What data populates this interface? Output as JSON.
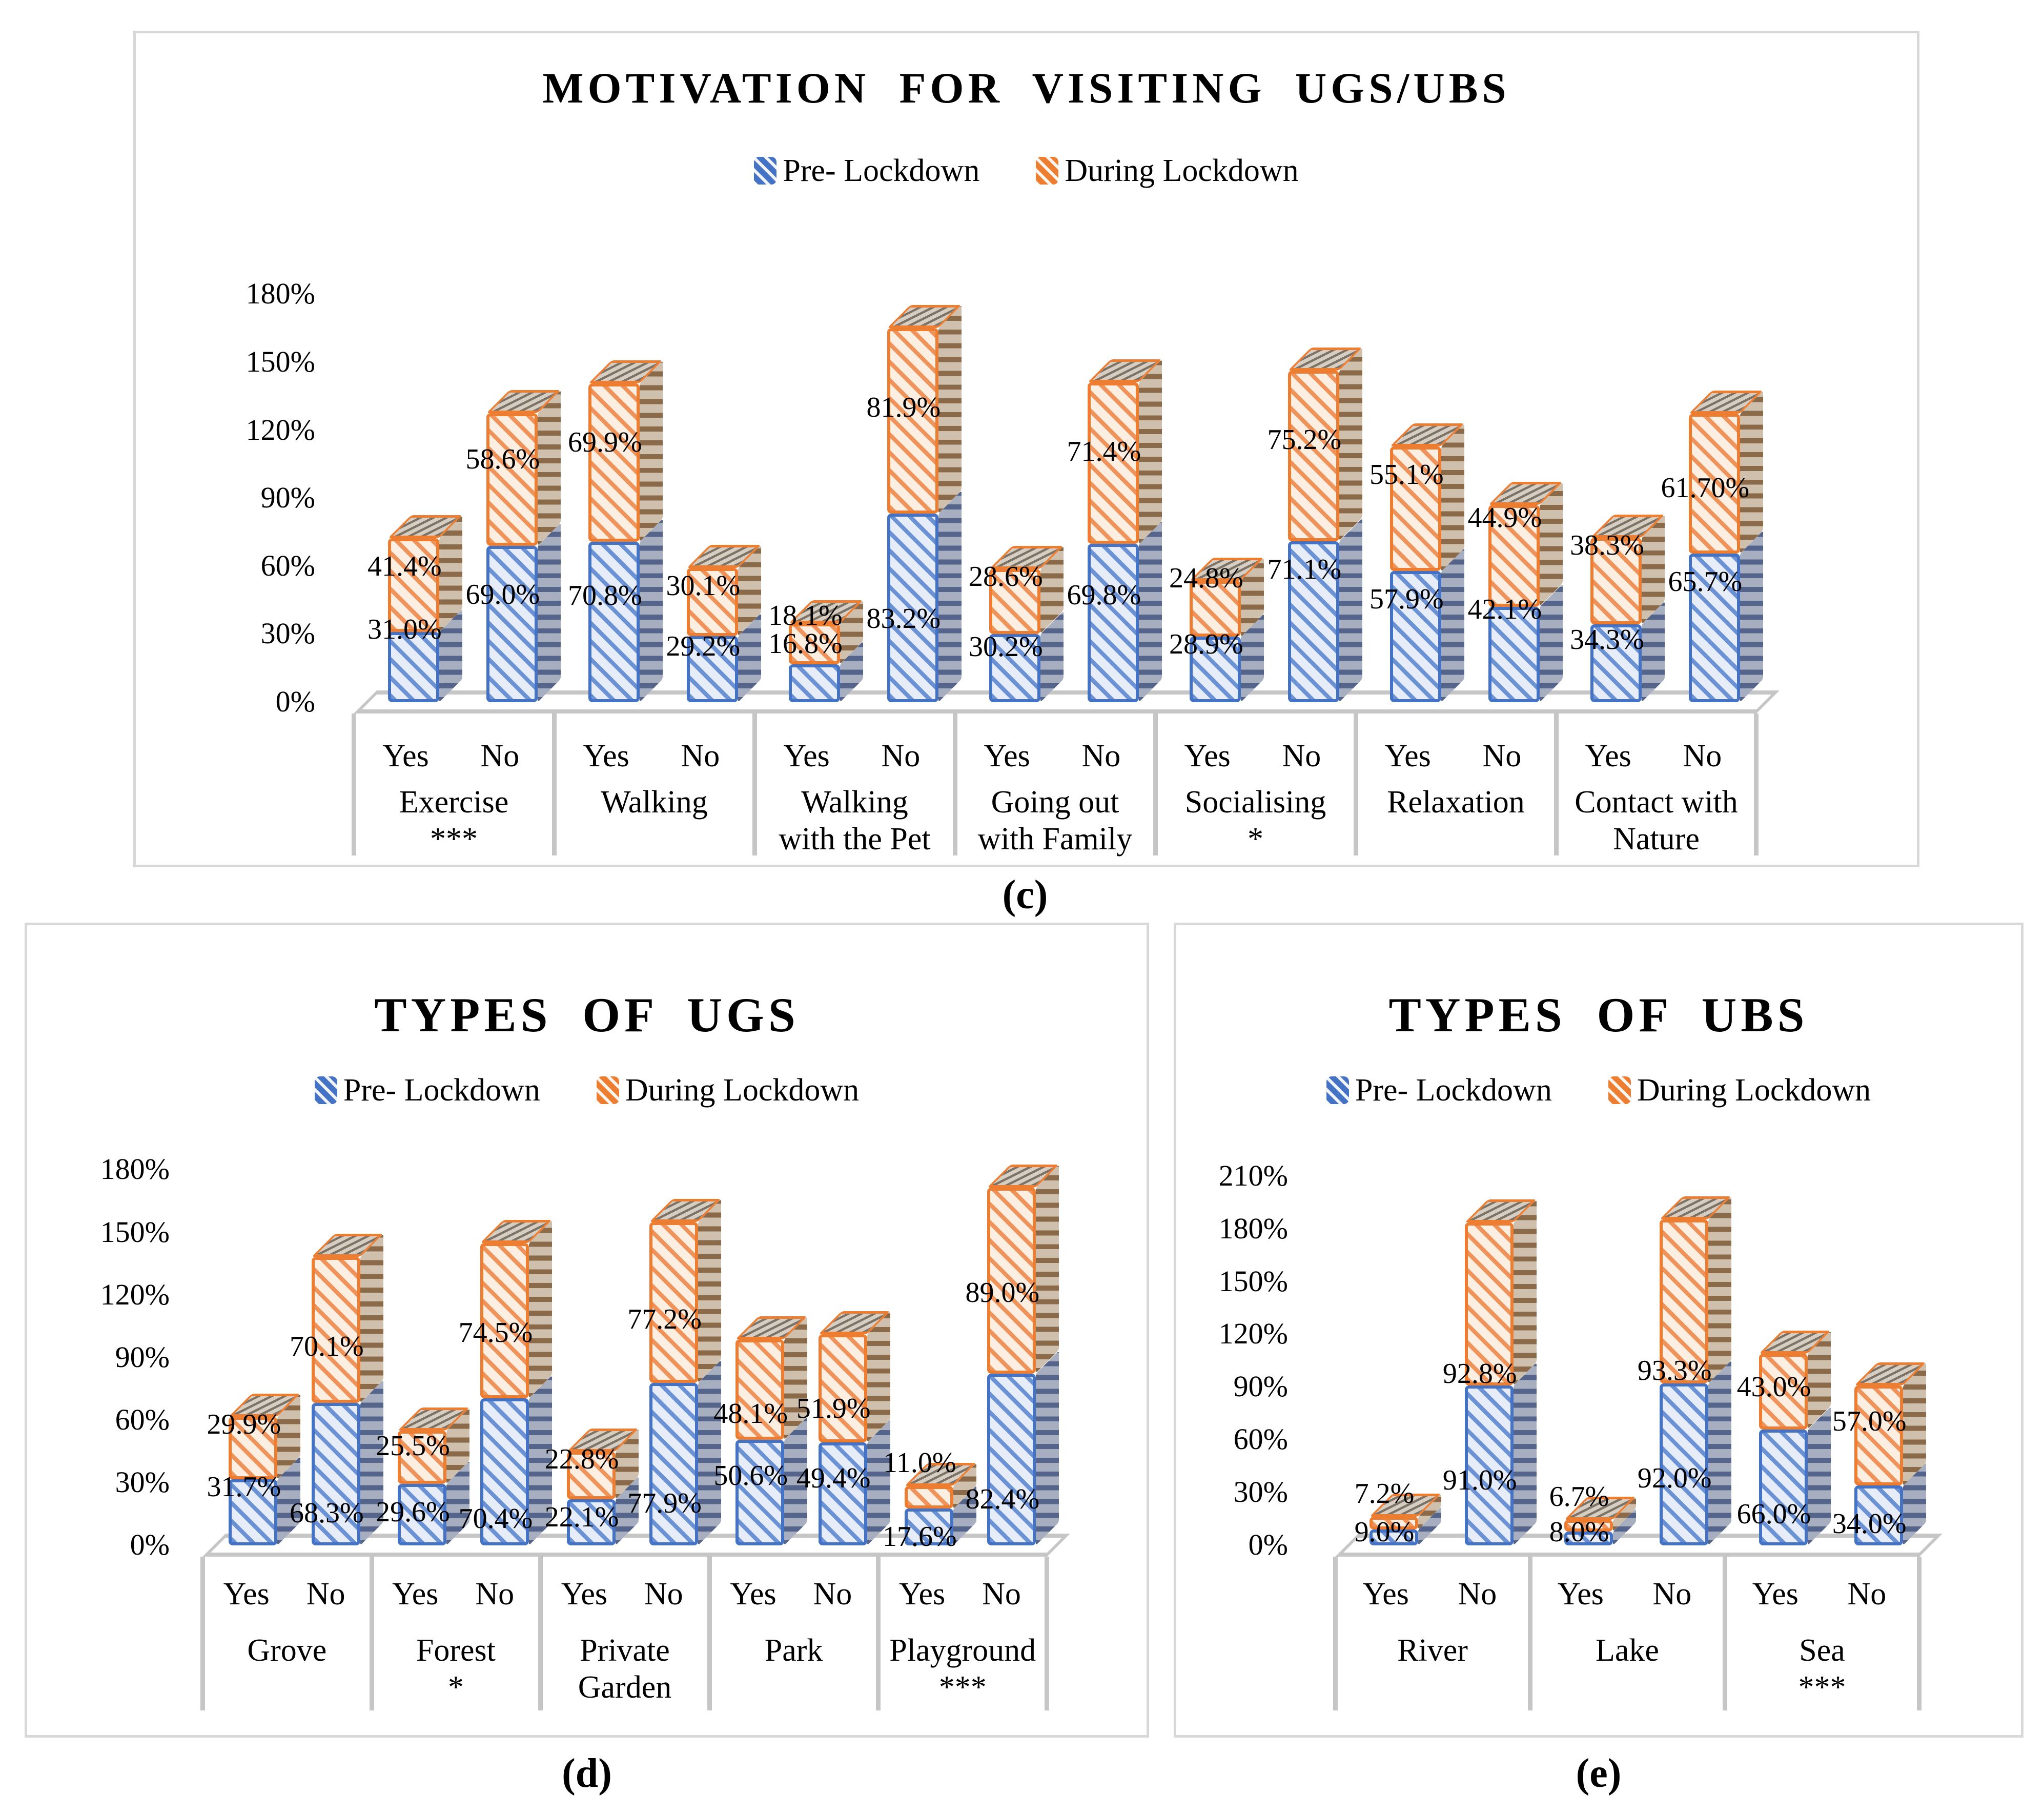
{
  "figure": {
    "captions": {
      "c": "(c)",
      "d": "(d)",
      "e": "(e)"
    }
  },
  "colors": {
    "pre_stroke": "#4472c4",
    "pre_fill": "#e7edf8",
    "during_stroke": "#ed7d31",
    "during_fill": "#fdeee2",
    "structure_gray": "#c6c6c6",
    "panel_border": "#d8d8d8"
  },
  "chart_data": [
    {
      "id": "c",
      "type": "bar",
      "subtype": "stacked-3d-column",
      "title": "MOTIVATION FOR VISITING UGS/UBS",
      "caption": "(c)",
      "legend": [
        "Pre- Lockdown",
        "During Lockdown"
      ],
      "series_names": [
        "Pre- Lockdown",
        "During Lockdown"
      ],
      "ylabel": "",
      "ylim": [
        0,
        180
      ],
      "y_ticks": [
        "0%",
        "30%",
        "60%",
        "90%",
        "120%",
        "150%",
        "180%"
      ],
      "grid": false,
      "legend_position": "top",
      "groups": [
        {
          "label_lines": [
            "Exercise",
            "***"
          ],
          "bars": [
            {
              "name": "Yes",
              "pre": 31.0,
              "pre_label": "31.0%",
              "during": 41.4,
              "during_label": "41.4%"
            },
            {
              "name": "No",
              "pre": 69.0,
              "pre_label": "69.0%",
              "during": 58.6,
              "during_label": "58.6%"
            }
          ]
        },
        {
          "label_lines": [
            "Walking"
          ],
          "bars": [
            {
              "name": "Yes",
              "pre": 70.8,
              "pre_label": "70.8%",
              "during": 69.9,
              "during_label": "69.9%"
            },
            {
              "name": "No",
              "pre": 29.2,
              "pre_label": "29.2%",
              "during": 30.1,
              "during_label": "30.1%"
            }
          ]
        },
        {
          "label_lines": [
            "Walking",
            "with the Pet"
          ],
          "bars": [
            {
              "name": "Yes",
              "pre": 16.8,
              "pre_label": "16.8%",
              "during": 18.1,
              "during_label": "18.1%"
            },
            {
              "name": "No",
              "pre": 83.2,
              "pre_label": "83.2%",
              "during": 81.9,
              "during_label": "81.9%"
            }
          ]
        },
        {
          "label_lines": [
            "Going out",
            "with Family"
          ],
          "bars": [
            {
              "name": "Yes",
              "pre": 30.2,
              "pre_label": "30.2%",
              "during": 28.6,
              "during_label": "28.6%"
            },
            {
              "name": "No",
              "pre": 69.8,
              "pre_label": "69.8%",
              "during": 71.4,
              "during_label": "71.4%"
            }
          ]
        },
        {
          "label_lines": [
            "Socialising",
            "*"
          ],
          "bars": [
            {
              "name": "Yes",
              "pre": 28.9,
              "pre_label": "28.9%",
              "during": 24.8,
              "during_label": "24.8%"
            },
            {
              "name": "No",
              "pre": 71.1,
              "pre_label": "71.1%",
              "during": 75.2,
              "during_label": "75.2%"
            }
          ]
        },
        {
          "label_lines": [
            "Relaxation"
          ],
          "bars": [
            {
              "name": "Yes",
              "pre": 57.9,
              "pre_label": "57.9%",
              "during": 55.1,
              "during_label": "55.1%"
            },
            {
              "name": "No",
              "pre": 42.1,
              "pre_label": "42.1%",
              "during": 44.9,
              "during_label": "44.9%"
            }
          ]
        },
        {
          "label_lines": [
            "Contact with",
            "Nature"
          ],
          "bars": [
            {
              "name": "Yes",
              "pre": 34.3,
              "pre_label": "34.3%",
              "during": 38.3,
              "during_label": "38.3%"
            },
            {
              "name": "No",
              "pre": 65.7,
              "pre_label": "65.7%",
              "during": 61.7,
              "during_label": "61.70%"
            }
          ]
        }
      ]
    },
    {
      "id": "d",
      "type": "bar",
      "subtype": "stacked-3d-column",
      "title": "TYPES OF UGS",
      "caption": "(d)",
      "legend": [
        "Pre- Lockdown",
        "During Lockdown"
      ],
      "series_names": [
        "Pre- Lockdown",
        "During Lockdown"
      ],
      "ylabel": "",
      "ylim": [
        0,
        180
      ],
      "y_ticks": [
        "0%",
        "30%",
        "60%",
        "90%",
        "120%",
        "150%",
        "180%"
      ],
      "grid": false,
      "legend_position": "top",
      "groups": [
        {
          "label_lines": [
            "Grove"
          ],
          "bars": [
            {
              "name": "Yes",
              "pre": 31.7,
              "pre_label": "31.7%",
              "during": 29.9,
              "during_label": "29.9%"
            },
            {
              "name": "No",
              "pre": 68.3,
              "pre_label": "68.3%",
              "during": 70.1,
              "during_label": "70.1%"
            }
          ]
        },
        {
          "label_lines": [
            "Forest",
            "*"
          ],
          "bars": [
            {
              "name": "Yes",
              "pre": 29.6,
              "pre_label": "29.6%",
              "during": 25.5,
              "during_label": "25.5%"
            },
            {
              "name": "No",
              "pre": 70.4,
              "pre_label": "70.4%",
              "during": 74.5,
              "during_label": "74.5%"
            }
          ]
        },
        {
          "label_lines": [
            "Private",
            "Garden"
          ],
          "bars": [
            {
              "name": "Yes",
              "pre": 22.1,
              "pre_label": "22.1%",
              "during": 22.8,
              "during_label": "22.8%"
            },
            {
              "name": "No",
              "pre": 77.9,
              "pre_label": "77.9%",
              "during": 77.2,
              "during_label": "77.2%"
            }
          ]
        },
        {
          "label_lines": [
            "Park"
          ],
          "bars": [
            {
              "name": "Yes",
              "pre": 50.6,
              "pre_label": "50.6%",
              "during": 48.1,
              "during_label": "48.1%"
            },
            {
              "name": "No",
              "pre": 49.4,
              "pre_label": "49.4%",
              "during": 51.9,
              "during_label": "51.9%"
            }
          ]
        },
        {
          "label_lines": [
            "Playground",
            "***"
          ],
          "bars": [
            {
              "name": "Yes",
              "pre": 17.6,
              "pre_label": "17.6%",
              "during": 11.0,
              "during_label": "11.0%"
            },
            {
              "name": "No",
              "pre": 82.4,
              "pre_label": "82.4%",
              "during": 89.0,
              "during_label": "89.0%"
            }
          ]
        }
      ]
    },
    {
      "id": "e",
      "type": "bar",
      "subtype": "stacked-3d-column",
      "title": "TYPES OF UBS",
      "caption": "(e)",
      "legend": [
        "Pre- Lockdown",
        "During Lockdown"
      ],
      "series_names": [
        "Pre- Lockdown",
        "During Lockdown"
      ],
      "ylabel": "",
      "ylim": [
        0,
        210
      ],
      "y_ticks": [
        "0%",
        "30%",
        "60%",
        "90%",
        "120%",
        "150%",
        "180%",
        "210%"
      ],
      "grid": false,
      "legend_position": "top",
      "groups": [
        {
          "label_lines": [
            "River"
          ],
          "bars": [
            {
              "name": "Yes",
              "pre": 9.0,
              "pre_label": "9.0%",
              "during": 7.2,
              "during_label": "7.2%"
            },
            {
              "name": "No",
              "pre": 91.0,
              "pre_label": "91.0%",
              "during": 92.8,
              "during_label": "92.8%"
            }
          ]
        },
        {
          "label_lines": [
            "Lake"
          ],
          "bars": [
            {
              "name": "Yes",
              "pre": 8.0,
              "pre_label": "8.0%",
              "during": 6.7,
              "during_label": "6.7%"
            },
            {
              "name": "No",
              "pre": 92.0,
              "pre_label": "92.0%",
              "during": 93.3,
              "during_label": "93.3%"
            }
          ]
        },
        {
          "label_lines": [
            "Sea",
            "***"
          ],
          "bars": [
            {
              "name": "Yes",
              "pre": 66.0,
              "pre_label": "66.0%",
              "during": 43.0,
              "during_label": "43.0%"
            },
            {
              "name": "No",
              "pre": 34.0,
              "pre_label": "34.0%",
              "during": 57.0,
              "during_label": "57.0%"
            }
          ]
        }
      ]
    }
  ]
}
